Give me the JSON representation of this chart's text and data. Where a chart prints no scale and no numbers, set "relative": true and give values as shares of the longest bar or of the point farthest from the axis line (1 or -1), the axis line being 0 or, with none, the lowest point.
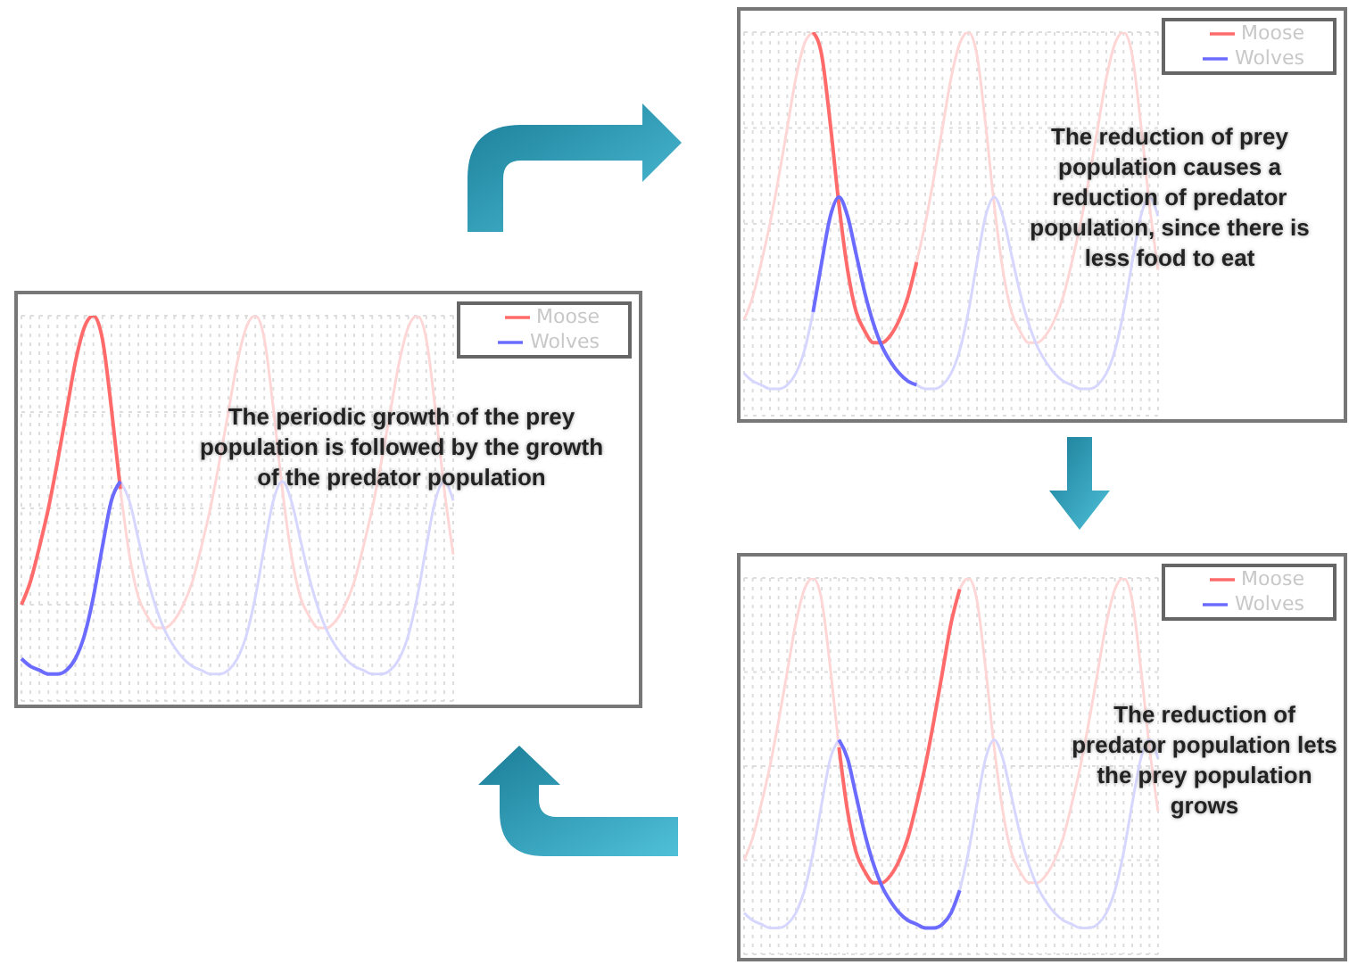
{
  "chart_data": [
    {
      "type": "line",
      "relative": true,
      "grid": true,
      "legend": "top right",
      "marker": "none",
      "line_style": "solid",
      "categories": [
        null,
        null,
        null,
        null,
        null,
        null,
        null,
        null,
        null,
        null,
        null,
        null,
        null,
        null,
        null,
        null,
        null,
        null,
        null,
        null,
        null,
        null,
        null,
        null,
        null,
        null,
        null,
        null,
        null,
        null,
        null,
        null,
        null,
        null,
        null,
        null,
        null,
        null,
        null,
        null,
        null,
        null,
        null,
        null,
        null,
        null,
        null,
        null,
        null
      ],
      "annotations": [
        "The periodic growth of the prey population is followed by the growth of the predator population"
      ],
      "series": [
        {
          "color": "#ffd6d6",
          "values": [
            null,
            null,
            null,
            null,
            null,
            null,
            null,
            null,
            null,
            null,
            null,
            0.55,
            0.38,
            0.27,
            0.22,
            0.19,
            0.19,
            0.21,
            0.25,
            0.31,
            0.4,
            0.5,
            0.62,
            0.75,
            0.88,
            0.97,
            1.0,
            0.94,
            0.76,
            0.55,
            0.38,
            0.27,
            0.22,
            0.19,
            0.19,
            0.21,
            0.25,
            0.31,
            0.4,
            0.5,
            0.62,
            0.75,
            0.88,
            0.97,
            1.0,
            0.94,
            0.76,
            0.55,
            0.38
          ]
        },
        {
          "color": "#d6d6ff",
          "values": [
            null,
            null,
            null,
            null,
            null,
            null,
            null,
            null,
            null,
            null,
            null,
            0.57,
            0.52,
            0.42,
            0.32,
            0.24,
            0.18,
            0.14,
            0.11,
            0.09,
            0.08,
            0.07,
            0.07,
            0.08,
            0.11,
            0.17,
            0.27,
            0.4,
            0.52,
            0.57,
            0.52,
            0.42,
            0.32,
            0.24,
            0.18,
            0.14,
            0.11,
            0.09,
            0.08,
            0.07,
            0.07,
            0.08,
            0.11,
            0.17,
            0.27,
            0.4,
            0.52,
            0.57,
            0.52
          ]
        },
        {
          "name": "Moose",
          "color": "#ff6b6b",
          "values": [
            0.25,
            0.31,
            0.4,
            0.5,
            0.62,
            0.75,
            0.88,
            0.97,
            1.0,
            0.94,
            0.76,
            0.55,
            null,
            null,
            null,
            null,
            null,
            null,
            null,
            null,
            null,
            null,
            null,
            null,
            null,
            null,
            null,
            null,
            null,
            null,
            null,
            null,
            null,
            null,
            null,
            null,
            null,
            null,
            null,
            null,
            null,
            null,
            null,
            null,
            null,
            null,
            null,
            null,
            null
          ]
        },
        {
          "name": "Wolves",
          "color": "#6b6bff",
          "values": [
            0.11,
            0.09,
            0.08,
            0.07,
            0.07,
            0.08,
            0.11,
            0.17,
            0.27,
            0.4,
            0.52,
            0.57,
            null,
            null,
            null,
            null,
            null,
            null,
            null,
            null,
            null,
            null,
            null,
            null,
            null,
            null,
            null,
            null,
            null,
            null,
            null,
            null,
            null,
            null,
            null,
            null,
            null,
            null,
            null,
            null,
            null,
            null,
            null,
            null,
            null,
            null,
            null,
            null,
            null
          ]
        }
      ]
    },
    {
      "type": "line",
      "relative": true,
      "grid": true,
      "legend": "top right",
      "marker": "none",
      "line_style": "solid",
      "categories": [
        null,
        null,
        null,
        null,
        null,
        null,
        null,
        null,
        null,
        null,
        null,
        null,
        null,
        null,
        null,
        null,
        null,
        null,
        null,
        null,
        null,
        null,
        null,
        null,
        null,
        null,
        null,
        null,
        null,
        null,
        null,
        null,
        null,
        null,
        null,
        null,
        null,
        null,
        null,
        null,
        null,
        null,
        null,
        null,
        null,
        null,
        null,
        null,
        null
      ],
      "annotations": [
        "The reduction of prey population causes a reduction of predator population, since there is less food to eat"
      ],
      "series": [
        {
          "color": "#ffd6d6",
          "values": [
            0.25,
            0.31,
            0.4,
            0.5,
            0.62,
            0.75,
            0.88,
            0.97,
            1.0,
            null,
            null,
            null,
            null,
            null,
            null,
            null,
            null,
            null,
            null,
            null,
            0.4,
            0.5,
            0.62,
            0.75,
            0.88,
            0.97,
            1.0,
            0.94,
            0.76,
            0.55,
            0.38,
            0.27,
            0.22,
            0.19,
            0.19,
            0.21,
            0.25,
            0.31,
            0.4,
            0.5,
            0.62,
            0.75,
            0.88,
            0.97,
            1.0,
            0.94,
            0.76,
            0.55,
            0.38
          ]
        },
        {
          "color": "#d6d6ff",
          "values": [
            0.11,
            0.09,
            0.08,
            0.07,
            0.07,
            0.08,
            0.11,
            0.17,
            0.27,
            null,
            null,
            null,
            null,
            null,
            null,
            null,
            null,
            null,
            null,
            null,
            0.08,
            0.07,
            0.07,
            0.08,
            0.11,
            0.17,
            0.27,
            0.4,
            0.52,
            0.57,
            0.52,
            0.42,
            0.32,
            0.24,
            0.18,
            0.14,
            0.11,
            0.09,
            0.08,
            0.07,
            0.07,
            0.08,
            0.11,
            0.17,
            0.27,
            0.4,
            0.52,
            0.57,
            0.52
          ]
        },
        {
          "name": "Moose",
          "color": "#ff6b6b",
          "values": [
            null,
            null,
            null,
            null,
            null,
            null,
            null,
            null,
            1.0,
            0.94,
            0.76,
            0.55,
            0.38,
            0.27,
            0.22,
            0.19,
            0.19,
            0.21,
            0.25,
            0.31,
            0.4,
            null,
            null,
            null,
            null,
            null,
            null,
            null,
            null,
            null,
            null,
            null,
            null,
            null,
            null,
            null,
            null,
            null,
            null,
            null,
            null,
            null,
            null,
            null,
            null,
            null,
            null,
            null,
            null
          ]
        },
        {
          "name": "Wolves",
          "color": "#6b6bff",
          "values": [
            null,
            null,
            null,
            null,
            null,
            null,
            null,
            null,
            0.27,
            0.4,
            0.52,
            0.57,
            0.52,
            0.42,
            0.32,
            0.24,
            0.18,
            0.14,
            0.11,
            0.09,
            0.08,
            null,
            null,
            null,
            null,
            null,
            null,
            null,
            null,
            null,
            null,
            null,
            null,
            null,
            null,
            null,
            null,
            null,
            null,
            null,
            null,
            null,
            null,
            null,
            null,
            null,
            null,
            null,
            null
          ]
        }
      ]
    },
    {
      "type": "line",
      "relative": true,
      "grid": true,
      "legend": "top right",
      "marker": "none",
      "line_style": "solid",
      "categories": [
        null,
        null,
        null,
        null,
        null,
        null,
        null,
        null,
        null,
        null,
        null,
        null,
        null,
        null,
        null,
        null,
        null,
        null,
        null,
        null,
        null,
        null,
        null,
        null,
        null,
        null,
        null,
        null,
        null,
        null,
        null,
        null,
        null,
        null,
        null,
        null,
        null,
        null,
        null,
        null,
        null,
        null,
        null,
        null,
        null,
        null,
        null,
        null,
        null
      ],
      "annotations": [
        "The reduction of predator population lets the prey population grows"
      ],
      "series": [
        {
          "color": "#ffd6d6",
          "values": [
            0.25,
            0.31,
            0.4,
            0.5,
            0.62,
            0.75,
            0.88,
            0.97,
            1.0,
            0.94,
            0.76,
            0.55,
            null,
            null,
            null,
            null,
            null,
            null,
            null,
            null,
            null,
            null,
            null,
            null,
            null,
            0.97,
            1.0,
            0.94,
            0.76,
            0.55,
            0.38,
            0.27,
            0.22,
            0.19,
            0.19,
            0.21,
            0.25,
            0.31,
            0.4,
            0.5,
            0.62,
            0.75,
            0.88,
            0.97,
            1.0,
            0.94,
            0.76,
            0.55,
            0.38
          ]
        },
        {
          "color": "#d6d6ff",
          "values": [
            0.11,
            0.09,
            0.08,
            0.07,
            0.07,
            0.08,
            0.11,
            0.17,
            0.27,
            0.4,
            0.52,
            0.57,
            null,
            null,
            null,
            null,
            null,
            null,
            null,
            null,
            null,
            null,
            null,
            null,
            null,
            0.17,
            0.27,
            0.4,
            0.52,
            0.57,
            0.52,
            0.42,
            0.32,
            0.24,
            0.18,
            0.14,
            0.11,
            0.09,
            0.08,
            0.07,
            0.07,
            0.08,
            0.11,
            0.17,
            0.27,
            0.4,
            0.52,
            0.57,
            0.52
          ]
        },
        {
          "name": "Moose",
          "color": "#ff6b6b",
          "values": [
            null,
            null,
            null,
            null,
            null,
            null,
            null,
            null,
            null,
            null,
            null,
            0.55,
            0.38,
            0.27,
            0.22,
            0.19,
            0.19,
            0.21,
            0.25,
            0.31,
            0.4,
            0.5,
            0.62,
            0.75,
            0.88,
            0.97,
            null,
            null,
            null,
            null,
            null,
            null,
            null,
            null,
            null,
            null,
            null,
            null,
            null,
            null,
            null,
            null,
            null,
            null,
            null,
            null,
            null,
            null,
            null
          ]
        },
        {
          "name": "Wolves",
          "color": "#6b6bff",
          "values": [
            null,
            null,
            null,
            null,
            null,
            null,
            null,
            null,
            null,
            null,
            null,
            0.57,
            0.52,
            0.42,
            0.32,
            0.24,
            0.18,
            0.14,
            0.11,
            0.09,
            0.08,
            0.07,
            0.07,
            0.08,
            0.11,
            0.17,
            null,
            null,
            null,
            null,
            null,
            null,
            null,
            null,
            null,
            null,
            null,
            null,
            null,
            null,
            null,
            null,
            null,
            null,
            null,
            null,
            null,
            null,
            null
          ]
        }
      ]
    }
  ]
}
